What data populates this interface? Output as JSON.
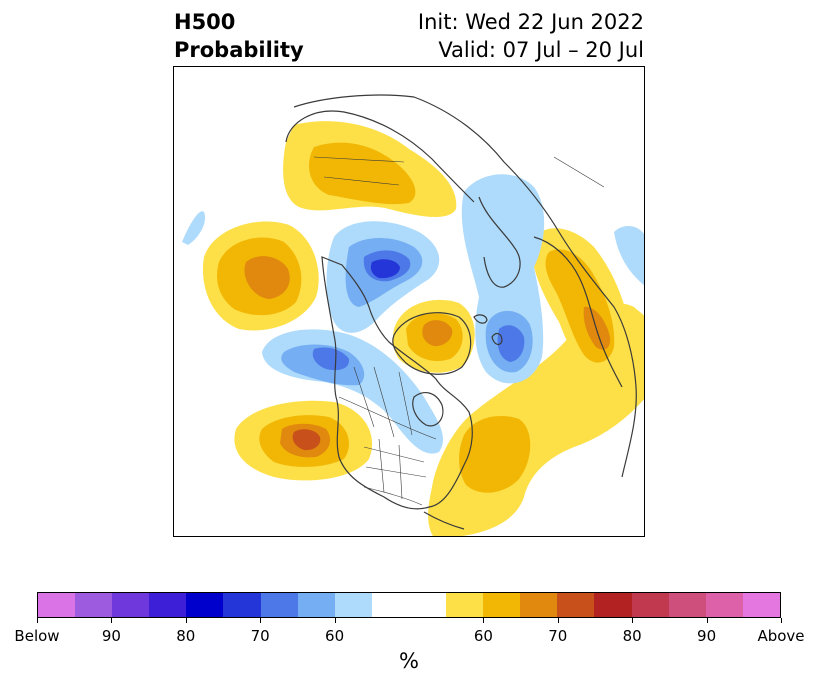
{
  "title": {
    "left_line1": "H500",
    "left_line2": "Probability",
    "right_line1": "Init: Wed 22 Jun 2022",
    "right_line2": "Valid: 07 Jul – 20 Jul"
  },
  "colorbar": {
    "colors": [
      "#d973e6",
      "#9d5ce0",
      "#6e38dc",
      "#3c1fd6",
      "#0000cc",
      "#2536d9",
      "#4c78e8",
      "#75aef2",
      "#aedbfb",
      "#ffffff",
      "#ffffff",
      "#fde047",
      "#f2b705",
      "#e0890e",
      "#c8501a",
      "#b22222",
      "#c0394f",
      "#cf4f7c",
      "#dd61a8",
      "#e577e1"
    ],
    "tick_labels": [
      "Below",
      "90",
      "80",
      "70",
      "60",
      "60",
      "70",
      "80",
      "90",
      "Above"
    ],
    "unit_label": "%"
  },
  "map": {
    "below_colors": {
      "60": "#aedbfb",
      "70": "#75aef2",
      "80": "#4c78e8",
      "90": "#2536d9"
    },
    "above_colors": {
      "60": "#fde047",
      "70": "#f2b705",
      "80": "#e0890e",
      "90": "#c8501a"
    },
    "coastline_color": "#3a3a3a"
  }
}
